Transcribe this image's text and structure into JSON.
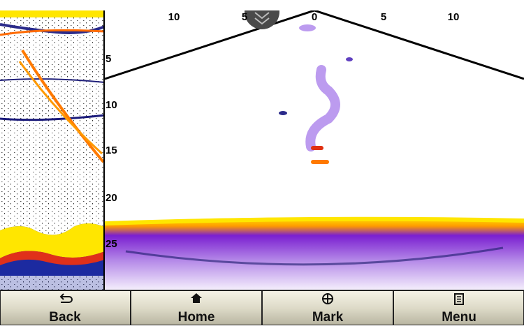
{
  "range_scale": {
    "labels": [
      10,
      5,
      0,
      5,
      10
    ]
  },
  "depth_scale": {
    "labels": [
      5,
      10,
      15,
      20,
      25
    ]
  },
  "toolbar": {
    "buttons": [
      {
        "label": "Back"
      },
      {
        "label": "Home"
      },
      {
        "label": "Mark"
      },
      {
        "label": "Menu"
      }
    ]
  }
}
